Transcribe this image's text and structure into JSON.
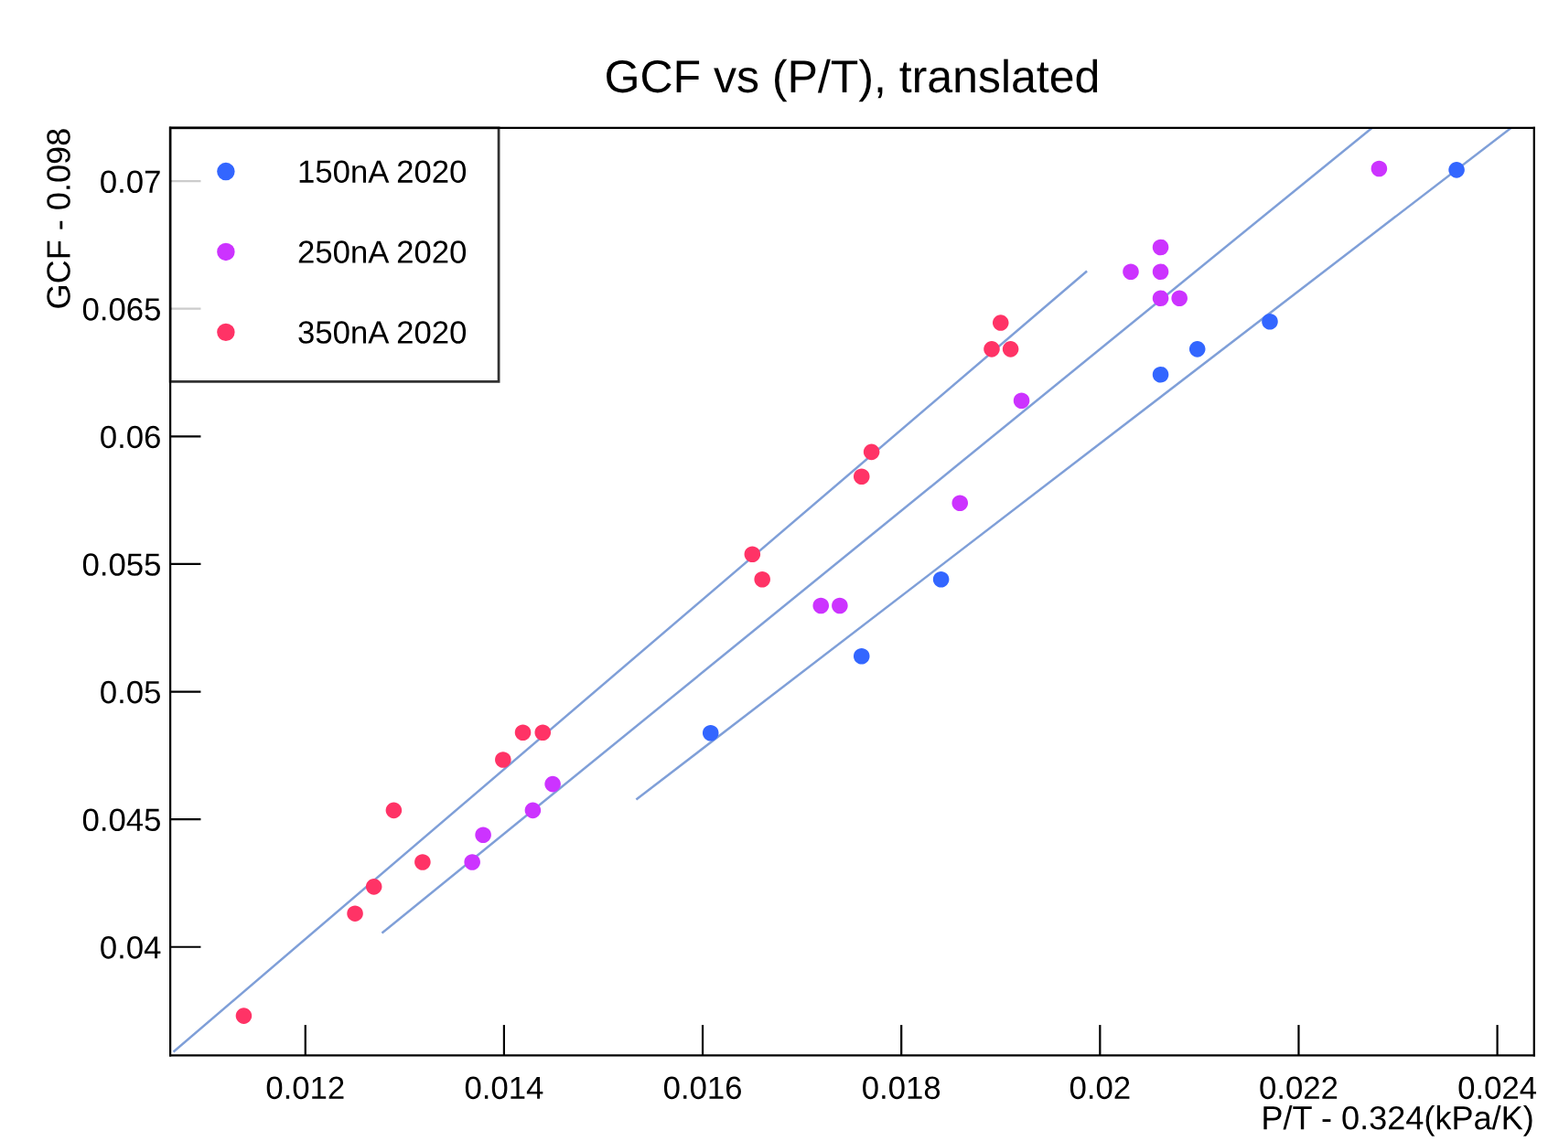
{
  "chart_data": {
    "type": "scatter",
    "title": "GCF vs (P/T), translated",
    "xlabel": "P/T - 0.324(kPa/K)",
    "ylabel": "GCF - 0.098",
    "xlim": [
      0.01064,
      0.02437
    ],
    "ylim": [
      0.03575,
      0.07209
    ],
    "xticks": [
      0.012,
      0.014,
      0.016,
      {
        "value": 0.018,
        "label": "0.018"
      },
      {
        "value": 0.02,
        "label": "0.02"
      },
      0.022,
      0.024
    ],
    "yticks": [
      0.04,
      0.045,
      0.05,
      0.055,
      0.06,
      0.065,
      0.07
    ],
    "grid": false,
    "legend": "top left",
    "marker": "circle",
    "series": [
      {
        "name": "150nA 2020",
        "color": "#3366ff",
        "x": [
          0.01608,
          0.0176,
          0.0184,
          0.02061,
          0.02098,
          0.02171,
          0.02359
        ],
        "values": [
          0.04838,
          0.05139,
          0.0544,
          0.06242,
          0.06342,
          0.0645,
          0.07044
        ]
      },
      {
        "name": "250nA 2020",
        "color": "#cc33ff",
        "x": [
          0.01368,
          0.01379,
          0.01429,
          0.01449,
          0.01719,
          0.01738,
          0.01859,
          0.01921,
          0.02031,
          0.02061,
          0.02061,
          0.02061,
          0.0208,
          0.02281
        ],
        "values": [
          0.04332,
          0.04439,
          0.04535,
          0.04638,
          0.05337,
          0.05337,
          0.05739,
          0.0614,
          0.06645,
          0.06741,
          0.06645,
          0.06541,
          0.06541,
          0.07049
        ]
      },
      {
        "name": "350nA 2020",
        "color": "#ff3366",
        "x": [
          0.01138,
          0.0125,
          0.01269,
          0.01289,
          0.01318,
          0.01399,
          0.01419,
          0.01439,
          0.0165,
          0.0166,
          0.0176,
          0.0177,
          0.01891,
          0.019,
          0.0191
        ],
        "values": [
          0.0373,
          0.04131,
          0.04236,
          0.04535,
          0.04332,
          0.04733,
          0.0484,
          0.0484,
          0.05538,
          0.0544,
          0.05843,
          0.05939,
          0.06342,
          0.06445,
          0.06342
        ]
      },
      {
        "type": "line",
        "marker": "none",
        "color": "#7f9fd8",
        "x": [
          0.01534,
          0.02414
        ],
        "values": [
          0.0458,
          0.07209
        ]
      },
      {
        "type": "line",
        "marker": "none",
        "color": "#7f9fd8",
        "x": [
          0.01278,
          0.02274
        ],
        "values": [
          0.04057,
          0.07209
        ]
      },
      {
        "type": "line",
        "marker": "none",
        "color": "#7f9fd8",
        "x": [
          0.01068,
          0.01986
        ],
        "values": [
          0.03592,
          0.06645
        ]
      }
    ]
  }
}
